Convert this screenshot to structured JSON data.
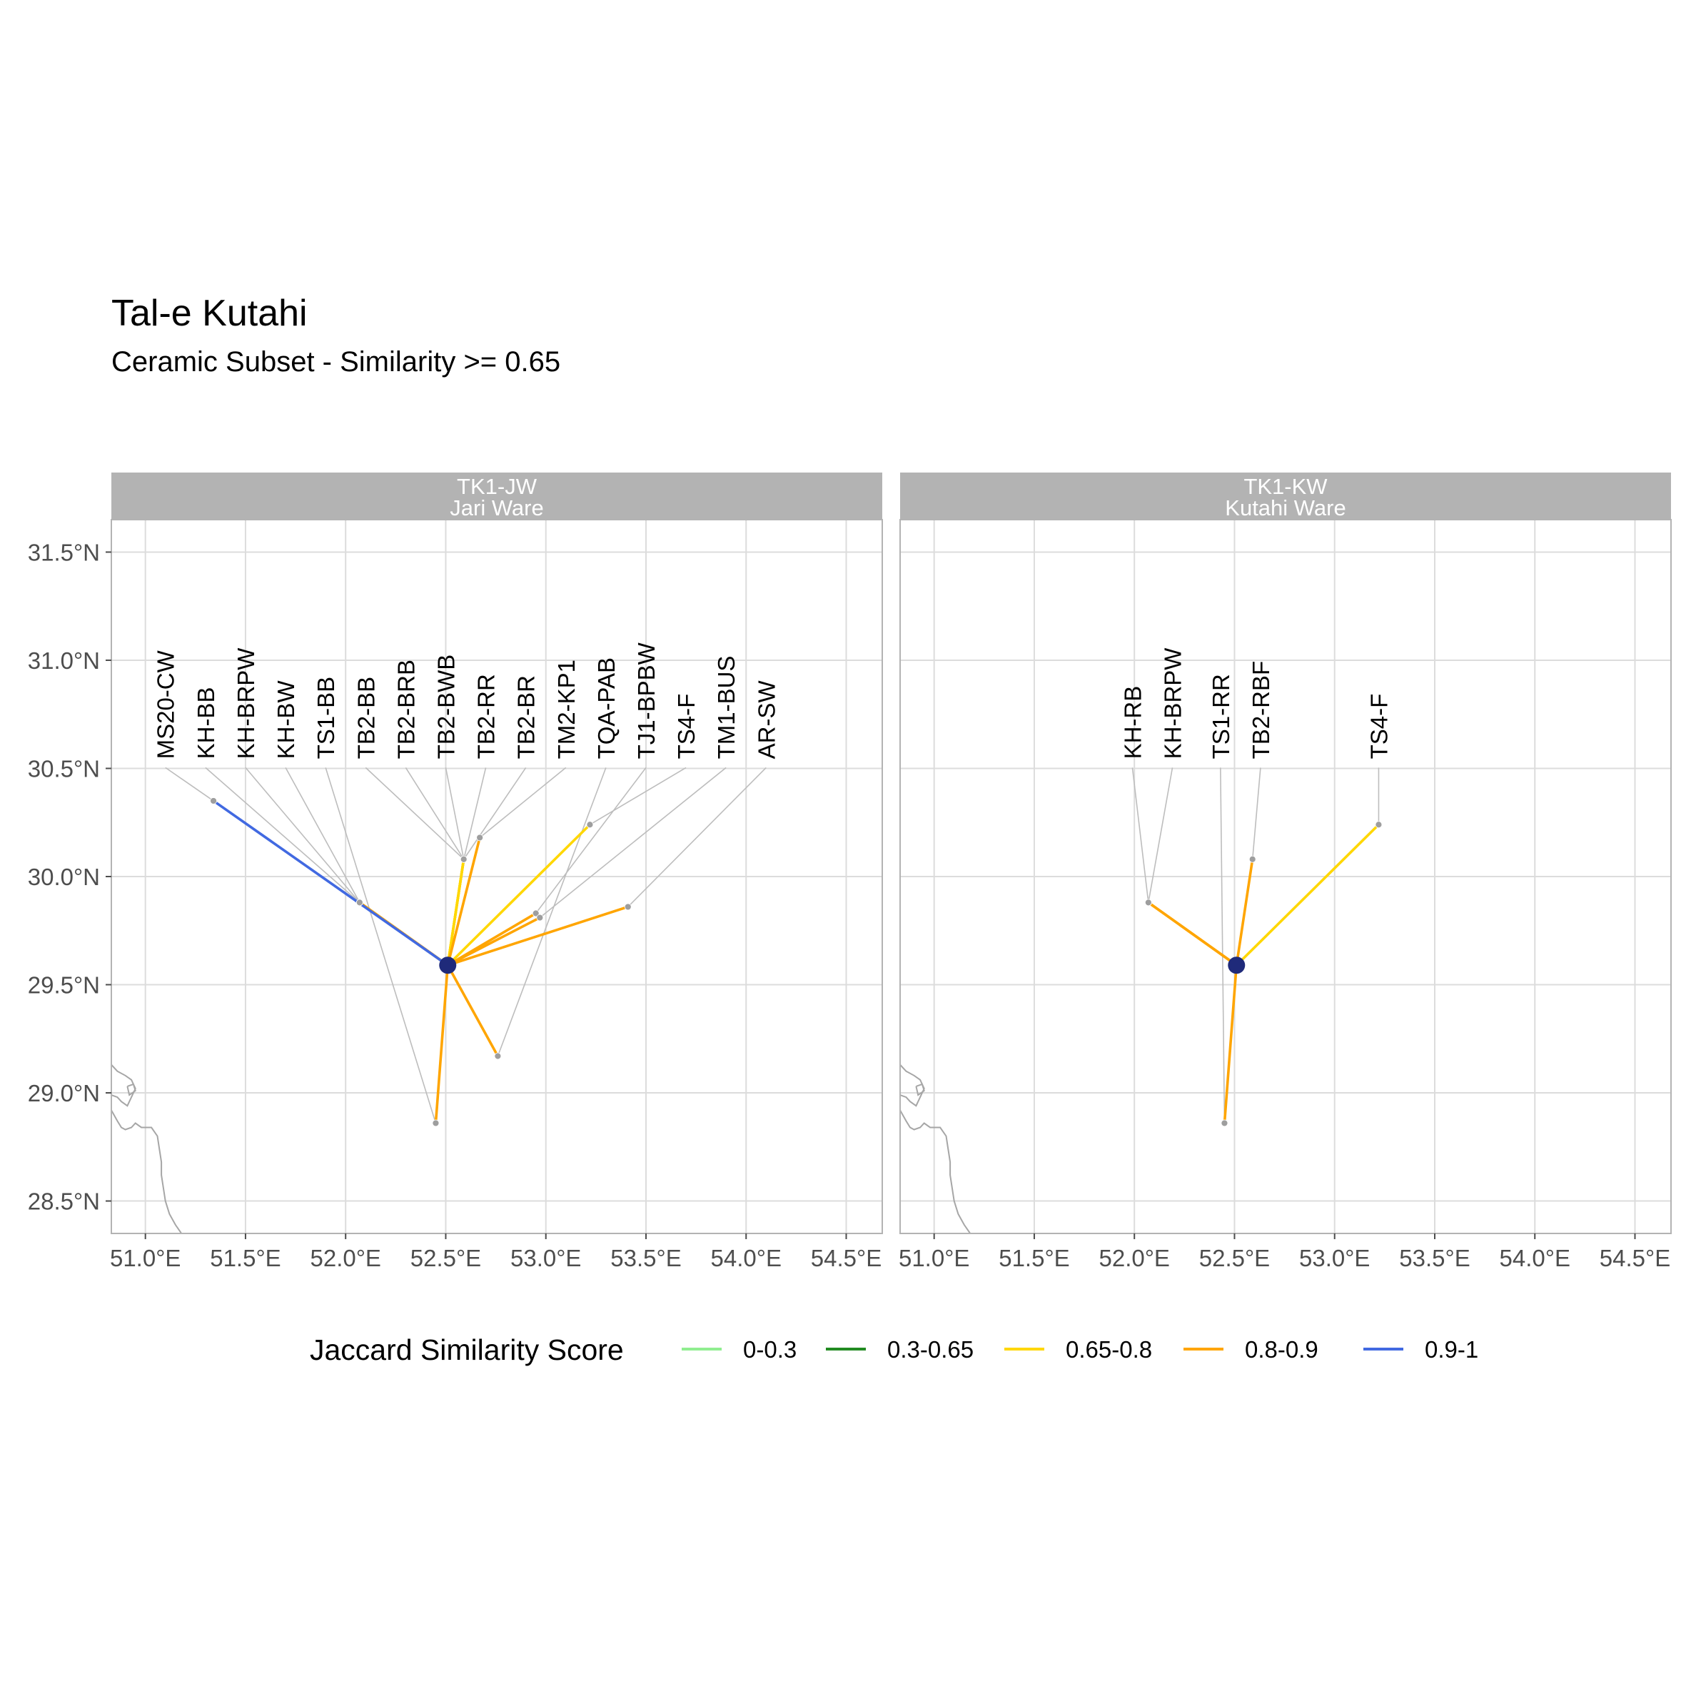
{
  "title": "Tal-e Kutahi",
  "subtitle": "Ceramic Subset - Similarity >= 0.65",
  "legend": {
    "title": "Jaccard Similarity Score",
    "items": [
      {
        "label": "0-0.3",
        "color": "#90ee90"
      },
      {
        "label": "0.3-0.65",
        "color": "#228b22"
      },
      {
        "label": "0.65-0.8",
        "color": "#ffd700"
      },
      {
        "label": "0.8-0.9",
        "color": "#ffa500"
      },
      {
        "label": "0.9-1",
        "color": "#4169e1"
      }
    ]
  },
  "chart_data": {
    "type": "map-network",
    "xlim": [
      50.83,
      54.68
    ],
    "ylim": [
      28.35,
      31.65
    ],
    "x_ticks": [
      51.0,
      51.5,
      52.0,
      52.5,
      53.0,
      53.5,
      54.0,
      54.5
    ],
    "x_tick_labels": [
      "51.0°E",
      "51.5°E",
      "52.0°E",
      "52.5°E",
      "53.0°E",
      "53.5°E",
      "54.0°E",
      "54.5°E"
    ],
    "y_ticks": [
      28.5,
      29.0,
      29.5,
      30.0,
      30.5,
      31.0,
      31.5
    ],
    "y_tick_labels": [
      "28.5°N",
      "29.0°N",
      "29.5°N",
      "30.0°N",
      "30.5°N",
      "31.0°N",
      "31.5°N"
    ],
    "label_row_y": 30.53,
    "center_color": "#1f2a7a",
    "site_color": "#9e9e9e",
    "coast": [
      [
        50.83,
        29.13
      ],
      [
        50.86,
        29.1
      ],
      [
        50.9,
        29.08
      ],
      [
        50.93,
        29.06
      ],
      [
        50.95,
        29.02
      ],
      [
        50.93,
        28.98
      ],
      [
        50.91,
        28.94
      ],
      [
        50.88,
        28.96
      ],
      [
        50.86,
        28.98
      ],
      [
        50.83,
        28.99
      ],
      [
        null,
        null
      ],
      [
        50.83,
        28.92
      ],
      [
        50.86,
        28.87
      ],
      [
        50.88,
        28.84
      ],
      [
        50.9,
        28.83
      ],
      [
        50.93,
        28.84
      ],
      [
        50.95,
        28.86
      ],
      [
        50.98,
        28.84
      ],
      [
        51.03,
        28.84
      ],
      [
        51.06,
        28.8
      ],
      [
        51.07,
        28.74
      ],
      [
        51.08,
        28.68
      ],
      [
        51.08,
        28.62
      ],
      [
        51.09,
        28.56
      ],
      [
        51.1,
        28.5
      ],
      [
        51.12,
        28.44
      ],
      [
        51.15,
        28.39
      ],
      [
        51.18,
        28.35
      ],
      [
        null,
        null
      ],
      [
        50.91,
        29.03
      ],
      [
        50.94,
        29.04
      ],
      [
        50.95,
        29.01
      ],
      [
        50.92,
        28.99
      ],
      [
        50.91,
        29.03
      ]
    ],
    "panels": [
      {
        "strip_code": "TK1-JW",
        "strip_name": "Jari Ware",
        "center": {
          "lon": 52.51,
          "lat": 29.59
        },
        "sites": [
          {
            "label": "MS20-CW",
            "label_lon": 51.1,
            "lon": 51.34,
            "lat": 30.35,
            "score_band": "0.9-1",
            "color": "#4169e1"
          },
          {
            "label": "KH-BB",
            "label_lon": 51.3,
            "lon": 52.07,
            "lat": 29.88,
            "score_band": "0.8-0.9",
            "color": "#ffa500"
          },
          {
            "label": "KH-BRPW",
            "label_lon": 51.5,
            "lon": 52.07,
            "lat": 29.88,
            "score_band": "0.8-0.9",
            "color": "#ffa500"
          },
          {
            "label": "KH-BW",
            "label_lon": 51.7,
            "lon": 52.07,
            "lat": 29.88,
            "score_band": "0.8-0.9",
            "color": "#ffa500"
          },
          {
            "label": "TS1-BB",
            "label_lon": 51.9,
            "lon": 52.45,
            "lat": 28.86,
            "score_band": "0.8-0.9",
            "color": "#ffa500"
          },
          {
            "label": "TB2-BB",
            "label_lon": 52.1,
            "lon": 52.59,
            "lat": 30.08,
            "score_band": "0.65-0.8",
            "color": "#ffd700"
          },
          {
            "label": "TB2-BRB",
            "label_lon": 52.3,
            "lon": 52.59,
            "lat": 30.08,
            "score_band": "0.65-0.8",
            "color": "#ffd700"
          },
          {
            "label": "TB2-BWB",
            "label_lon": 52.5,
            "lon": 52.59,
            "lat": 30.08,
            "score_band": "0.65-0.8",
            "color": "#ffd700"
          },
          {
            "label": "TB2-RR",
            "label_lon": 52.7,
            "lon": 52.59,
            "lat": 30.08,
            "score_band": "0.65-0.8",
            "color": "#ffd700"
          },
          {
            "label": "TB2-BR",
            "label_lon": 52.9,
            "lon": 52.59,
            "lat": 30.08,
            "score_band": "0.65-0.8",
            "color": "#ffd700"
          },
          {
            "label": "TM2-KP1",
            "label_lon": 53.1,
            "lon": 52.67,
            "lat": 30.18,
            "score_band": "0.8-0.9",
            "color": "#ffa500"
          },
          {
            "label": "TQA-PAB",
            "label_lon": 53.3,
            "lon": 52.76,
            "lat": 29.17,
            "score_band": "0.8-0.9",
            "color": "#ffa500"
          },
          {
            "label": "TJ1-BPBW",
            "label_lon": 53.5,
            "lon": 52.95,
            "lat": 29.83,
            "score_band": "0.8-0.9",
            "color": "#ffa500"
          },
          {
            "label": "TS4-F",
            "label_lon": 53.7,
            "lon": 53.22,
            "lat": 30.24,
            "score_band": "0.65-0.8",
            "color": "#ffd700"
          },
          {
            "label": "TM1-BUS",
            "label_lon": 53.9,
            "lon": 52.97,
            "lat": 29.81,
            "score_band": "0.8-0.9",
            "color": "#ffa500"
          },
          {
            "label": "AR-SW",
            "label_lon": 54.1,
            "lon": 53.41,
            "lat": 29.86,
            "score_band": "0.8-0.9",
            "color": "#ffa500"
          }
        ]
      },
      {
        "strip_code": "TK1-KW",
        "strip_name": "Kutahi Ware",
        "center": {
          "lon": 52.51,
          "lat": 29.59
        },
        "sites": [
          {
            "label": "KH-RB",
            "label_lon": 51.99,
            "lon": 52.07,
            "lat": 29.88,
            "score_band": "0.8-0.9",
            "color": "#ffa500"
          },
          {
            "label": "KH-BRPW",
            "label_lon": 52.19,
            "lon": 52.07,
            "lat": 29.88,
            "score_band": "0.8-0.9",
            "color": "#ffa500"
          },
          {
            "label": "TS1-RR",
            "label_lon": 52.43,
            "lon": 52.45,
            "lat": 28.86,
            "score_band": "0.8-0.9",
            "color": "#ffa500"
          },
          {
            "label": "TB2-RBF",
            "label_lon": 52.63,
            "lon": 52.59,
            "lat": 30.08,
            "score_band": "0.8-0.9",
            "color": "#ffa500"
          },
          {
            "label": "TS4-F",
            "label_lon": 53.22,
            "lon": 53.22,
            "lat": 30.24,
            "score_band": "0.65-0.8",
            "color": "#ffd700"
          }
        ]
      }
    ]
  }
}
